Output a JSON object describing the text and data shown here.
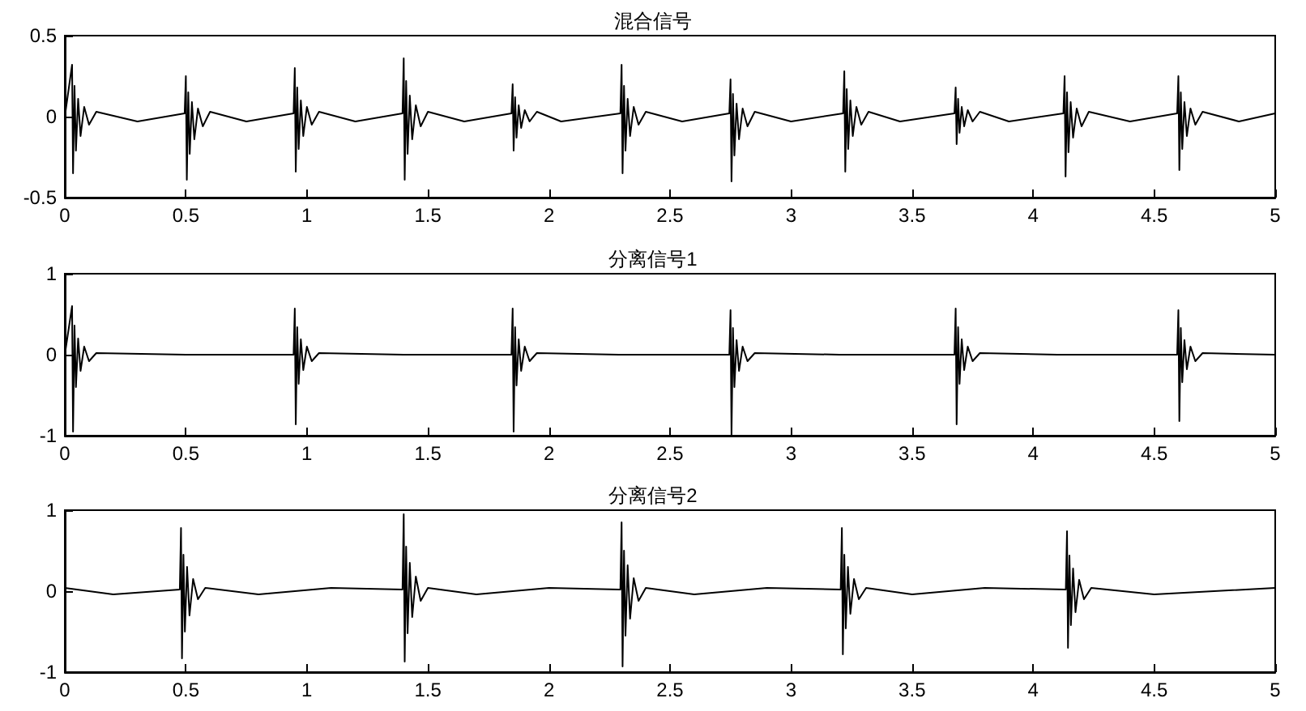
{
  "chart_data": [
    {
      "type": "line",
      "title": "混合信号",
      "color": "#000000",
      "marker": "none",
      "line_style": "solid",
      "grid": false,
      "xlim": [
        0,
        5
      ],
      "xticks": [
        0,
        0.5,
        1,
        1.5,
        2,
        2.5,
        3,
        3.5,
        4,
        4.5,
        5
      ],
      "ylim": [
        -0.5,
        0.5
      ],
      "yticks": [
        -0.5,
        0,
        0.5
      ],
      "x": [
        0,
        0.03,
        0.034,
        0.04,
        0.046,
        0.055,
        0.065,
        0.08,
        0.1,
        0.13,
        0.3,
        0.495,
        0.5,
        0.504,
        0.51,
        0.516,
        0.525,
        0.535,
        0.55,
        0.57,
        0.6,
        0.75,
        0.945,
        0.95,
        0.954,
        0.96,
        0.966,
        0.975,
        0.985,
        1.0,
        1.02,
        1.05,
        1.2,
        1.395,
        1.4,
        1.404,
        1.41,
        1.416,
        1.425,
        1.435,
        1.45,
        1.47,
        1.5,
        1.65,
        1.845,
        1.85,
        1.854,
        1.86,
        1.866,
        1.875,
        1.885,
        1.9,
        1.92,
        1.95,
        2.05,
        2.295,
        2.3,
        2.304,
        2.31,
        2.316,
        2.325,
        2.335,
        2.35,
        2.37,
        2.4,
        2.55,
        2.745,
        2.75,
        2.754,
        2.76,
        2.766,
        2.775,
        2.785,
        2.8,
        2.82,
        2.85,
        3.0,
        3.215,
        3.22,
        3.224,
        3.23,
        3.236,
        3.245,
        3.255,
        3.27,
        3.29,
        3.32,
        3.45,
        3.675,
        3.68,
        3.684,
        3.69,
        3.696,
        3.705,
        3.715,
        3.73,
        3.75,
        3.78,
        3.9,
        4.125,
        4.13,
        4.134,
        4.14,
        4.146,
        4.155,
        4.165,
        4.18,
        4.2,
        4.23,
        4.4,
        4.595,
        4.6,
        4.604,
        4.61,
        4.616,
        4.625,
        4.635,
        4.65,
        4.67,
        4.7,
        4.85,
        5.0
      ],
      "values": [
        0,
        0.32,
        -0.35,
        0.19,
        -0.21,
        0.11,
        -0.12,
        0.06,
        -0.05,
        0.03,
        -0.03,
        0.02,
        0.25,
        -0.39,
        0.15,
        -0.23,
        0.09,
        -0.14,
        0.05,
        -0.06,
        0.03,
        -0.03,
        0.02,
        0.3,
        -0.34,
        0.18,
        -0.2,
        0.1,
        -0.12,
        0.06,
        -0.05,
        0.03,
        -0.03,
        0.02,
        0.36,
        -0.39,
        0.22,
        -0.23,
        0.13,
        -0.14,
        0.07,
        -0.06,
        0.03,
        -0.03,
        0.02,
        0.2,
        -0.21,
        0.12,
        -0.13,
        0.07,
        -0.07,
        0.04,
        -0.03,
        0.03,
        -0.03,
        0.02,
        0.32,
        -0.35,
        0.19,
        -0.21,
        0.11,
        -0.12,
        0.06,
        -0.05,
        0.03,
        -0.03,
        0.02,
        0.23,
        -0.4,
        0.14,
        -0.24,
        0.08,
        -0.14,
        0.05,
        -0.06,
        0.03,
        -0.03,
        0.02,
        0.28,
        -0.34,
        0.17,
        -0.2,
        0.1,
        -0.12,
        0.06,
        -0.05,
        0.03,
        -0.03,
        0.02,
        0.18,
        -0.17,
        0.11,
        -0.1,
        0.06,
        -0.06,
        0.04,
        -0.03,
        0.03,
        -0.03,
        0.02,
        0.25,
        -0.37,
        0.15,
        -0.22,
        0.09,
        -0.13,
        0.05,
        -0.06,
        0.03,
        -0.03,
        0.02,
        0.25,
        -0.33,
        0.15,
        -0.2,
        0.09,
        -0.12,
        0.05,
        -0.05,
        0.03,
        -0.03,
        0.02
      ]
    },
    {
      "type": "line",
      "title": "分离信号1",
      "color": "#000000",
      "marker": "none",
      "line_style": "solid",
      "grid": false,
      "xlim": [
        0,
        5
      ],
      "xticks": [
        0,
        0.5,
        1,
        1.5,
        2,
        2.5,
        3,
        3.5,
        4,
        4.5,
        5
      ],
      "ylim": [
        -1,
        1
      ],
      "yticks": [
        -1,
        0,
        1
      ],
      "x": [
        0,
        0.03,
        0.034,
        0.04,
        0.046,
        0.055,
        0.065,
        0.08,
        0.1,
        0.13,
        0.5,
        0.945,
        0.95,
        0.954,
        0.96,
        0.966,
        0.975,
        0.985,
        1.0,
        1.02,
        1.05,
        1.4,
        1.845,
        1.85,
        1.854,
        1.86,
        1.866,
        1.875,
        1.885,
        1.9,
        1.92,
        1.95,
        2.3,
        2.745,
        2.75,
        2.754,
        2.76,
        2.766,
        2.775,
        2.785,
        2.8,
        2.82,
        2.85,
        3.2,
        3.675,
        3.68,
        3.684,
        3.69,
        3.696,
        3.705,
        3.715,
        3.73,
        3.75,
        3.78,
        4.1,
        4.595,
        4.6,
        4.604,
        4.61,
        4.616,
        4.625,
        4.635,
        4.65,
        4.67,
        4.7,
        5
      ],
      "values": [
        0,
        0.6,
        -0.95,
        0.36,
        -0.4,
        0.2,
        -0.2,
        0.1,
        -0.08,
        0.02,
        0,
        0,
        0.57,
        -0.86,
        0.34,
        -0.36,
        0.19,
        -0.19,
        0.1,
        -0.08,
        0.02,
        0,
        0,
        0.57,
        -0.95,
        0.34,
        -0.38,
        0.19,
        -0.2,
        0.1,
        -0.08,
        0.02,
        0,
        0,
        0.55,
        -1.0,
        0.33,
        -0.4,
        0.18,
        -0.2,
        0.1,
        -0.08,
        0.02,
        0,
        0,
        0.57,
        -0.86,
        0.34,
        -0.36,
        0.19,
        -0.19,
        0.1,
        -0.08,
        0.02,
        0,
        0,
        0.55,
        -0.82,
        0.33,
        -0.34,
        0.18,
        -0.18,
        0.1,
        -0.08,
        0.02,
        0
      ]
    },
    {
      "type": "line",
      "title": "分离信号2",
      "color": "#000000",
      "marker": "none",
      "line_style": "solid",
      "grid": false,
      "xlim": [
        0,
        5
      ],
      "xticks": [
        0,
        0.5,
        1,
        1.5,
        2,
        2.5,
        3,
        3.5,
        4,
        4.5,
        5
      ],
      "ylim": [
        -1,
        1
      ],
      "yticks": [
        -1,
        0,
        1
      ],
      "x": [
        0,
        0.2,
        0.475,
        0.48,
        0.484,
        0.49,
        0.496,
        0.505,
        0.515,
        0.53,
        0.55,
        0.58,
        0.8,
        1.1,
        1.395,
        1.4,
        1.404,
        1.41,
        1.416,
        1.425,
        1.435,
        1.45,
        1.47,
        1.5,
        1.7,
        2.0,
        2.295,
        2.3,
        2.304,
        2.31,
        2.316,
        2.325,
        2.335,
        2.35,
        2.37,
        2.4,
        2.6,
        2.9,
        3.205,
        3.21,
        3.214,
        3.22,
        3.226,
        3.235,
        3.245,
        3.26,
        3.28,
        3.31,
        3.5,
        3.8,
        4.135,
        4.14,
        4.144,
        4.15,
        4.156,
        4.165,
        4.175,
        4.19,
        4.21,
        4.24,
        4.5,
        5
      ],
      "values": [
        0.04,
        -0.04,
        0.02,
        0.78,
        -0.83,
        0.45,
        -0.5,
        0.3,
        -0.3,
        0.15,
        -0.1,
        0.04,
        -0.04,
        0.04,
        0.02,
        0.95,
        -0.87,
        0.55,
        -0.52,
        0.35,
        -0.32,
        0.18,
        -0.12,
        0.04,
        -0.04,
        0.04,
        0.02,
        0.85,
        -0.93,
        0.5,
        -0.55,
        0.32,
        -0.34,
        0.16,
        -0.12,
        0.04,
        -0.04,
        0.04,
        0.02,
        0.78,
        -0.78,
        0.45,
        -0.46,
        0.3,
        -0.28,
        0.15,
        -0.1,
        0.04,
        -0.04,
        0.04,
        0.02,
        0.74,
        -0.7,
        0.44,
        -0.42,
        0.28,
        -0.26,
        0.14,
        -0.1,
        0.04,
        -0.04,
        0.04
      ]
    }
  ]
}
